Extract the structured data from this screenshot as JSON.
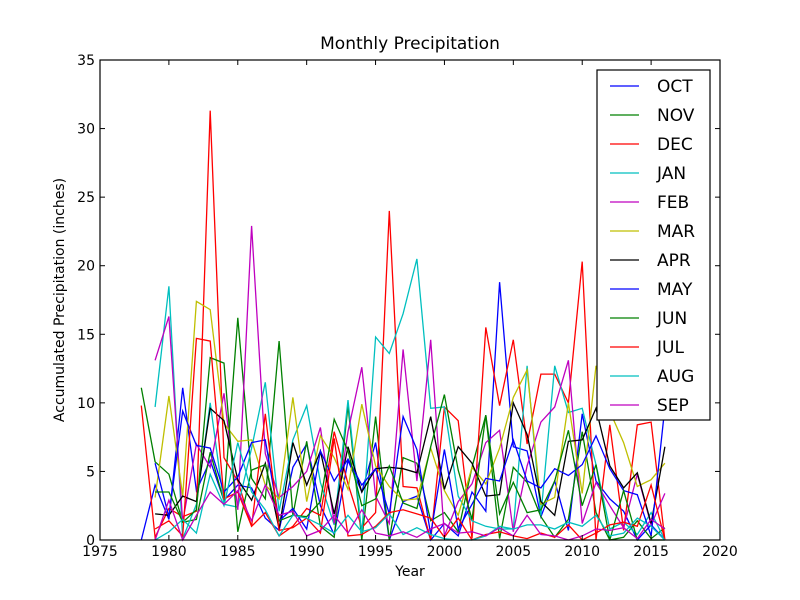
{
  "chart_data": {
    "type": "line",
    "title": "Monthly Precipitation",
    "xlabel": "Year",
    "ylabel": "Accumulated Precipitation (inches)",
    "xlim": [
      1975,
      2020
    ],
    "ylim": [
      0,
      35
    ],
    "xticks": [
      "1975",
      "1980",
      "1985",
      "1990",
      "1995",
      "2000",
      "2005",
      "2010",
      "2015",
      "2020"
    ],
    "yticks": [
      "0",
      "5",
      "10",
      "15",
      "20",
      "25",
      "30",
      "35"
    ],
    "grid": false,
    "legend_position": "top-right",
    "series": [
      {
        "name": "OCT",
        "color": "#0000ff",
        "start_year": 1978,
        "values": [
          0.0,
          4.0,
          1.5,
          11.1,
          3.6,
          5.8,
          2.9,
          4.0,
          3.8,
          1.6,
          0.7,
          5.3,
          7.0,
          2.5,
          0.4,
          5.8,
          3.5,
          7.1,
          0.0,
          2.8,
          3.2,
          0.0,
          1.2,
          0.3,
          3.5,
          2.1,
          18.8,
          6.8,
          6.5,
          1.7,
          4.3,
          0.7,
          9.2,
          4.3,
          3.0,
          2.1,
          0.0,
          1.1,
          0.0
        ]
      },
      {
        "name": "NOV",
        "color": "#008000",
        "start_year": 1978,
        "values": [
          11.1,
          5.7,
          4.8,
          1.3,
          1.5,
          6.4,
          2.8,
          16.2,
          4.5,
          3.0,
          14.5,
          1.8,
          7.2,
          1.0,
          0.2,
          9.8,
          0.0,
          9.0,
          0.0,
          6.0,
          5.6,
          1.4,
          2.0,
          0.6,
          5.3,
          9.1,
          0.1,
          5.3,
          4.2,
          1.7,
          0.2,
          1.5,
          7.9,
          2.0,
          0.0,
          0.2,
          1.4,
          0.1,
          0.9
        ]
      },
      {
        "name": "DEC",
        "color": "#ff0000",
        "start_year": 1978,
        "values": [
          9.8,
          0.2,
          2.3,
          1.7,
          2.1,
          31.3,
          6.0,
          4.3,
          1.0,
          2.0,
          0.3,
          1.0,
          2.3,
          1.8,
          7.9,
          4.1,
          0.9,
          2.0,
          24.0,
          3.9,
          3.8,
          0.0,
          9.7,
          8.7,
          0.1,
          15.5,
          9.8,
          14.6,
          7.0,
          12.1,
          12.1,
          10.0,
          20.3,
          0.0,
          8.4,
          0.7,
          8.4,
          8.6,
          0.0
        ]
      },
      {
        "name": "JAN",
        "color": "#00bfbf",
        "start_year": 1979,
        "values": [
          9.7,
          18.5,
          0.1,
          2.6,
          10.0,
          2.6,
          2.4,
          6.7,
          11.5,
          2.1,
          7.3,
          9.8,
          4.2,
          1.1,
          10.2,
          0.4,
          14.8,
          13.6,
          16.5,
          20.5,
          9.6,
          9.7,
          3.2,
          1.4,
          1.0,
          0.8,
          0.8,
          12.7,
          1.8,
          12.7,
          9.3,
          9.6,
          5.5,
          0.8,
          1.3,
          0.4,
          2.0,
          0.0
        ]
      },
      {
        "name": "FEB",
        "color": "#bf00bf",
        "start_year": 1979,
        "values": [
          13.1,
          16.3,
          1.3,
          7.0,
          5.3,
          10.7,
          2.2,
          22.9,
          6.3,
          3.1,
          3.9,
          5.0,
          8.2,
          1.2,
          7.9,
          12.6,
          3.2,
          1.2,
          13.9,
          4.3,
          14.6,
          0.3,
          2.8,
          4.1,
          7.1,
          8.0,
          0.6,
          5.4,
          8.6,
          9.7,
          13.1,
          1.2,
          4.2,
          2.5,
          0.9,
          4.8,
          1.1,
          3.4
        ]
      },
      {
        "name": "MAR",
        "color": "#bfbf00",
        "start_year": 1979,
        "values": [
          3.1,
          10.5,
          3.2,
          17.4,
          16.8,
          8.5,
          7.2,
          7.3,
          4.0,
          3.0,
          10.4,
          2.8,
          7.6,
          6.0,
          3.7,
          9.9,
          5.4,
          3.9,
          2.9,
          3.0,
          6.7,
          3.6,
          1.8,
          5.3,
          4.1,
          6.7,
          10.4,
          12.4,
          2.6,
          3.1,
          10.0,
          3.4,
          12.7,
          9.4,
          7.1,
          3.9,
          4.4,
          5.6
        ]
      },
      {
        "name": "APR",
        "color": "#000000",
        "start_year": 1979,
        "values": [
          1.9,
          1.8,
          3.2,
          2.8,
          9.6,
          8.7,
          4.4,
          2.9,
          5.6,
          0.8,
          7.1,
          4.0,
          6.5,
          1.9,
          6.8,
          3.5,
          5.2,
          5.3,
          5.2,
          4.9,
          9.0,
          3.7,
          6.8,
          5.6,
          3.2,
          3.3,
          10.0,
          7.7,
          2.8,
          1.8,
          7.2,
          7.3,
          9.6,
          5.4,
          3.8,
          4.9,
          1.2,
          6.8
        ]
      },
      {
        "name": "MAY",
        "color": "#0000ff",
        "start_year": 1979,
        "values": [
          5.6,
          1.7,
          9.4,
          6.9,
          6.7,
          3.5,
          4.6,
          7.1,
          7.3,
          1.4,
          2.3,
          0.8,
          6.5,
          4.3,
          5.9,
          4.0,
          5.2,
          1.9,
          9.0,
          6.6,
          0.4,
          6.6,
          0.8,
          2.6,
          4.5,
          4.3,
          7.3,
          4.3,
          3.8,
          5.2,
          4.7,
          5.5,
          7.6,
          5.2,
          3.6,
          3.3,
          0.3,
          9.7
        ]
      },
      {
        "name": "JUN",
        "color": "#008000",
        "start_year": 1979,
        "values": [
          3.5,
          3.5,
          1.3,
          2.2,
          13.3,
          12.9,
          0.6,
          5.1,
          5.5,
          1.4,
          1.8,
          1.7,
          2.8,
          8.8,
          6.5,
          2.5,
          3.0,
          5.4,
          2.7,
          2.3,
          6.8,
          10.6,
          5.1,
          1.5,
          9.1,
          1.9,
          4.2,
          2.0,
          2.2,
          4.3,
          8.0,
          2.5,
          5.5,
          0.0,
          3.6,
          0.0,
          0.0,
          0.0
        ]
      },
      {
        "name": "JUL",
        "color": "#ff0000",
        "start_year": 1979,
        "values": [
          0.8,
          1.4,
          0.3,
          14.7,
          14.5,
          3.0,
          3.5,
          1.0,
          9.2,
          0.7,
          0.9,
          1.6,
          0.5,
          7.4,
          0.3,
          0.4,
          1.0,
          2.0,
          2.2,
          1.9,
          1.6,
          0.2,
          1.6,
          0.0,
          0.4,
          0.6,
          0.3,
          0.1,
          0.5,
          0.2,
          1.1,
          0.0,
          0.5,
          1.1,
          1.3,
          1.0,
          4.0,
          0.0
        ]
      },
      {
        "name": "AUG",
        "color": "#00bfbf",
        "start_year": 1979,
        "values": [
          0.0,
          0.6,
          1.5,
          0.5,
          4.8,
          2.5,
          7.1,
          3.5,
          2.2,
          0.3,
          1.8,
          1.6,
          1.1,
          0.5,
          1.8,
          0.6,
          0.9,
          1.9,
          0.4,
          0.9,
          0.4,
          0.1,
          0.0,
          0.0,
          0.3,
          1.0,
          0.8,
          1.1,
          1.1,
          0.8,
          1.3,
          1.0,
          1.8,
          0.3,
          0.5,
          1.6,
          1.0,
          0.0
        ]
      },
      {
        "name": "SEP",
        "color": "#bf00bf",
        "start_year": 1979,
        "values": [
          0.0,
          2.9,
          0.0,
          1.8,
          3.5,
          2.6,
          3.6,
          1.4,
          4.0,
          1.8,
          2.1,
          0.3,
          0.7,
          1.8,
          0.5,
          2.2,
          0.5,
          0.3,
          0.6,
          0.2,
          0.8,
          1.2,
          0.5,
          0.6,
          0.3,
          0.9,
          0.3,
          1.8,
          0.4,
          0.3,
          0.0,
          0.3,
          0.8,
          0.7,
          0.9,
          0.1,
          1.5,
          0.8
        ]
      }
    ]
  }
}
